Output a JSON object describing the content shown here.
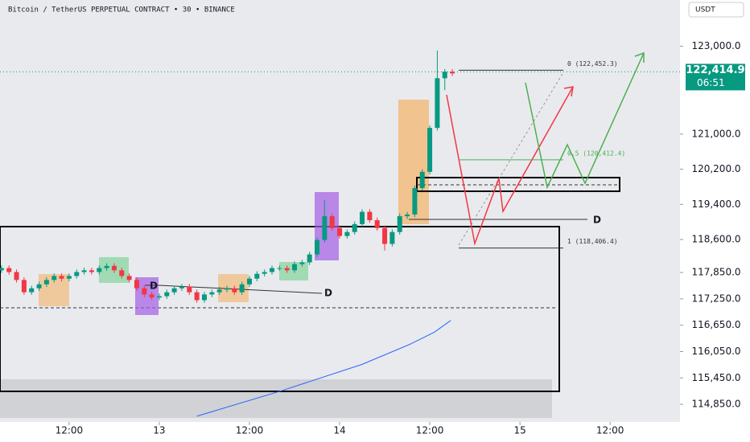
{
  "chart_data": {
    "type": "candlestick",
    "title": "Bitcoin / TetherUS PERPETUAL CONTRACT • 30 • BINANCE",
    "currency": "USDT",
    "up_color": "#089981",
    "down_color": "#f23645",
    "x": [
      -21,
      -20,
      -19,
      -18,
      -17,
      -16,
      -15,
      -14,
      -13,
      -12,
      -11,
      -10,
      -9,
      -8,
      -7,
      -6,
      -5,
      -4,
      -3,
      -2,
      -1,
      0,
      1,
      2,
      3,
      4,
      5,
      6,
      7,
      8,
      9,
      10,
      11,
      12,
      13,
      14,
      15,
      16,
      17,
      18,
      19,
      20,
      21,
      22,
      23,
      24,
      25,
      26,
      27,
      28,
      29,
      30,
      31,
      32,
      33,
      34,
      35,
      36,
      37,
      38,
      39
    ],
    "open": [
      117900,
      117950,
      117860,
      117680,
      117400,
      117490,
      117580,
      117680,
      117770,
      117710,
      117770,
      117860,
      117900,
      117860,
      117950,
      118000,
      117900,
      117770,
      117680,
      117490,
      117350,
      117280,
      117310,
      117400,
      117490,
      117530,
      117400,
      117220,
      117350,
      117400,
      117460,
      117490,
      117400,
      117580,
      117710,
      117820,
      117860,
      117950,
      117950,
      117900,
      118040,
      118080,
      118260,
      118590,
      119130,
      118860,
      118680,
      118770,
      118950,
      119230,
      119040,
      118860,
      118500,
      118770,
      119130,
      119170,
      119770,
      120140,
      121140,
      122270,
      122420
    ],
    "high": [
      118010,
      118010,
      117920,
      117740,
      117550,
      117640,
      117740,
      117830,
      117830,
      117830,
      117920,
      117960,
      117960,
      118010,
      118060,
      118060,
      117960,
      117830,
      117740,
      117550,
      117410,
      117370,
      117460,
      117550,
      117590,
      117590,
      117460,
      117410,
      117460,
      117520,
      117550,
      117550,
      117640,
      117770,
      117880,
      117920,
      118010,
      118010,
      118010,
      118100,
      118140,
      118320,
      118650,
      119500,
      119190,
      118920,
      118830,
      119010,
      119290,
      119290,
      119100,
      118920,
      118830,
      119190,
      119230,
      119830,
      120200,
      121200,
      122900,
      122480,
      122480
    ],
    "low": [
      117840,
      117800,
      117620,
      117340,
      117340,
      117430,
      117520,
      117620,
      117650,
      117650,
      117710,
      117800,
      117800,
      117800,
      117890,
      117840,
      117710,
      117620,
      117430,
      117290,
      117220,
      117220,
      117250,
      117340,
      117430,
      117340,
      117160,
      117160,
      117290,
      117340,
      117400,
      117340,
      117340,
      117520,
      117650,
      117760,
      117800,
      117890,
      117840,
      117840,
      117980,
      118020,
      118200,
      118530,
      118800,
      118620,
      118620,
      118710,
      118890,
      118980,
      118800,
      118350,
      118440,
      118710,
      119070,
      119110,
      119710,
      120080,
      121080,
      122000,
      122320
    ],
    "close": [
      117950,
      117860,
      117680,
      117400,
      117490,
      117580,
      117680,
      117770,
      117710,
      117770,
      117860,
      117900,
      117860,
      117950,
      118000,
      117900,
      117770,
      117680,
      117490,
      117350,
      117280,
      117310,
      117400,
      117490,
      117530,
      117400,
      117220,
      117350,
      117400,
      117460,
      117490,
      117400,
      117580,
      117710,
      117820,
      117860,
      117950,
      117950,
      117900,
      118040,
      118080,
      118260,
      118590,
      119130,
      118860,
      118680,
      118770,
      118950,
      119230,
      119040,
      118860,
      118500,
      118770,
      119130,
      119170,
      119770,
      120140,
      121140,
      122270,
      122420,
      122380
    ],
    "ma": {
      "color": "#2962ff",
      "x": [
        5,
        16.3,
        27,
        33.4,
        36.6,
        38.8
      ],
      "values": [
        114580,
        115160,
        115760,
        116220,
        116490,
        116760
      ]
    },
    "last_price": {
      "value": 122414.9,
      "label": "122,414.9"
    },
    "countdown": "06:51",
    "fib_levels": [
      {
        "value": 122452.3,
        "label": "0 (122,452.3)"
      },
      {
        "value": 120412.4,
        "label": "0.5 (120,412.4)"
      },
      {
        "value": 118406.4,
        "label": "1 (118,406.4)"
      }
    ],
    "annotations": [
      "D",
      "D",
      "D"
    ],
    "xlim": [
      -21.2,
      69.3
    ],
    "xticks": [
      {
        "value": -12,
        "label": "12:00"
      },
      {
        "value": 0,
        "label": "13"
      },
      {
        "value": 12,
        "label": "12:00"
      },
      {
        "value": 24,
        "label": "14"
      },
      {
        "value": 36,
        "label": "12:00"
      },
      {
        "value": 48,
        "label": "15"
      },
      {
        "value": 60,
        "label": "12:00"
      }
    ],
    "ylim": [
      114450,
      124050
    ],
    "yticks": [
      {
        "value": 123000,
        "label": "123,000.0"
      },
      {
        "value": 121000,
        "label": "121,000.0"
      },
      {
        "value": 120200,
        "label": "120,200.0"
      },
      {
        "value": 119400,
        "label": "119,400.0"
      },
      {
        "value": 118600,
        "label": "118,600.0"
      },
      {
        "value": 117850,
        "label": "117,850.0"
      },
      {
        "value": 117250,
        "label": "117,250.0"
      },
      {
        "value": 116650,
        "label": "116,650.0"
      },
      {
        "value": 116050,
        "label": "116,050.0"
      },
      {
        "value": 115450,
        "label": "115,450.0"
      },
      {
        "value": 114850,
        "label": "114,850.0"
      }
    ]
  }
}
